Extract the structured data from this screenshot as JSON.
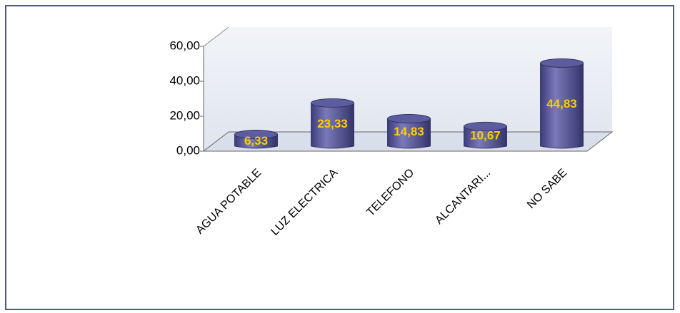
{
  "chart_data": {
    "type": "bar",
    "categories": [
      "AGUA POTABLE",
      "LUZ ELECTRICA",
      "TELEFONO",
      "ALCANTARI...",
      "NO SABE"
    ],
    "values": [
      6.33,
      23.33,
      14.83,
      10.67,
      44.83
    ],
    "value_labels": [
      "6,33",
      "23,33",
      "14,83",
      "10,67",
      "44,83"
    ],
    "color": "#5c5c9e",
    "ylim": [
      0,
      60
    ],
    "yticks": [
      {
        "value": 0,
        "label": "0,00"
      },
      {
        "value": 20,
        "label": "20,00"
      },
      {
        "value": 40,
        "label": "40,00"
      },
      {
        "value": 60,
        "label": "60,00"
      }
    ]
  }
}
